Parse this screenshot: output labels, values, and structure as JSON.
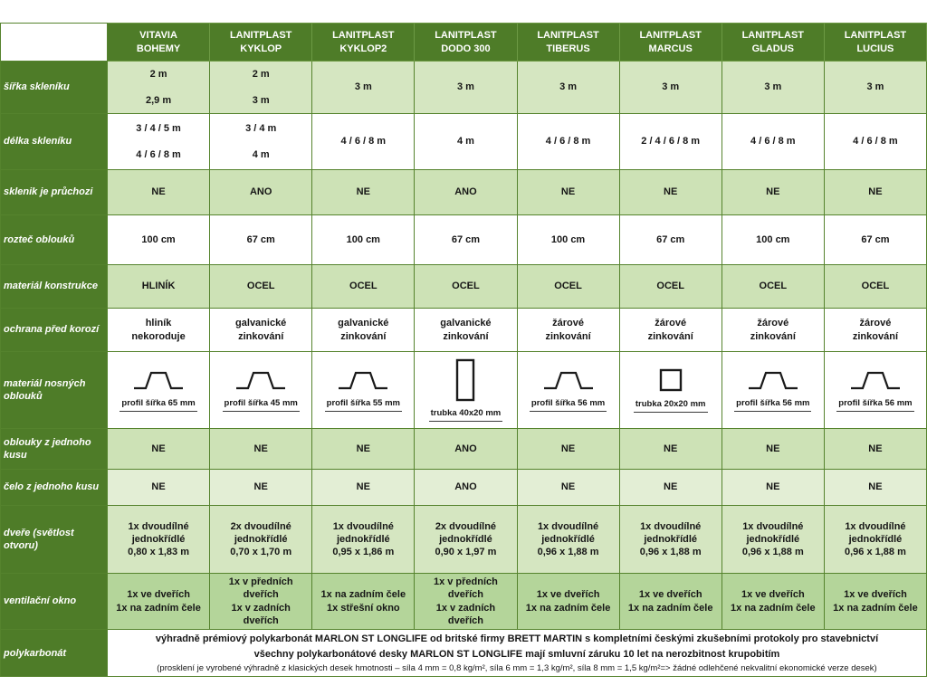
{
  "colors": {
    "header_green": "#4e7c28",
    "grid_green": "#55832d",
    "row_shades": {
      "white": "#ffffff",
      "light": "#d5e6c1",
      "mid": "#cde2b6",
      "pale": "#e3eed5",
      "dark": "#b4d59a"
    }
  },
  "table": {
    "columns": [
      {
        "brand": "VITAVIA",
        "model": "BOHEMY"
      },
      {
        "brand": "LANITPLAST",
        "model": "KYKLOP"
      },
      {
        "brand": "LANITPLAST",
        "model": "KYKLOP2"
      },
      {
        "brand": "LANITPLAST",
        "model": "DODO 300"
      },
      {
        "brand": "LANITPLAST",
        "model": "TIBERUS"
      },
      {
        "brand": "LANITPLAST",
        "model": "MARCUS"
      },
      {
        "brand": "LANITPLAST",
        "model": "GLADUS"
      },
      {
        "brand": "LANITPLAST",
        "model": "LUCIUS"
      }
    ],
    "rows": [
      {
        "label": "šířka skleníku",
        "type": "text",
        "shade": "light",
        "cells": [
          [
            "2 m",
            "2,9 m"
          ],
          [
            "2 m",
            "3 m"
          ],
          [
            "3 m"
          ],
          [
            "3 m"
          ],
          [
            "3 m"
          ],
          [
            "3 m"
          ],
          [
            "3 m"
          ],
          [
            "3 m"
          ]
        ]
      },
      {
        "label": "délka skleníku",
        "type": "text",
        "shade": "white",
        "cells": [
          [
            "3 / 4 / 5 m",
            "4 / 6 / 8 m"
          ],
          [
            "3 / 4 m",
            "4 m"
          ],
          [
            "4 / 6 / 8 m"
          ],
          [
            "4 m"
          ],
          [
            "4 / 6 / 8 m"
          ],
          [
            "2 / 4 / 6 / 8 m"
          ],
          [
            "4 / 6 / 8 m"
          ],
          [
            "4 / 6 / 8 m"
          ]
        ]
      },
      {
        "label": "sklenik je průchozi",
        "type": "text",
        "shade": "mid",
        "cells": [
          [
            "NE"
          ],
          [
            "ANO"
          ],
          [
            "NE"
          ],
          [
            "ANO"
          ],
          [
            "NE"
          ],
          [
            "NE"
          ],
          [
            "NE"
          ],
          [
            "NE"
          ]
        ]
      },
      {
        "label": "rozteč oblouků",
        "type": "text",
        "shade": "white",
        "cells": [
          [
            "100 cm"
          ],
          [
            "67 cm"
          ],
          [
            "100 cm"
          ],
          [
            "67 cm"
          ],
          [
            "100 cm"
          ],
          [
            "67 cm"
          ],
          [
            "100 cm"
          ],
          [
            "67 cm"
          ]
        ]
      },
      {
        "label": "materiál konstrukce",
        "type": "text",
        "shade": "mid",
        "cells": [
          [
            "HLINÍK"
          ],
          [
            "OCEL"
          ],
          [
            "OCEL"
          ],
          [
            "OCEL"
          ],
          [
            "OCEL"
          ],
          [
            "OCEL"
          ],
          [
            "OCEL"
          ],
          [
            "OCEL"
          ]
        ]
      },
      {
        "label": "ochrana před korozí",
        "type": "text",
        "shade": "white",
        "cells": [
          [
            "hliník",
            "nekoroduje"
          ],
          [
            "galvanické",
            "zinkování"
          ],
          [
            "galvanické",
            "zinkování"
          ],
          [
            "galvanické",
            "zinkování"
          ],
          [
            "žárové",
            "zinkování"
          ],
          [
            "žárové",
            "zinkování"
          ],
          [
            "žárové",
            "zinkování"
          ],
          [
            "žárové",
            "zinkování"
          ]
        ]
      },
      {
        "label": "materiál nosných oblouků",
        "type": "profiles",
        "shade": "white",
        "cells": [
          {
            "shape": "hat-profile",
            "caption": "profil šířka 65 mm"
          },
          {
            "shape": "hat-profile",
            "caption": "profil šířka 45 mm"
          },
          {
            "shape": "hat-profile",
            "caption": "profil šířka 55 mm"
          },
          {
            "shape": "tube-40x20",
            "caption": "trubka 40x20 mm"
          },
          {
            "shape": "hat-profile",
            "caption": "profil šířka 56 mm"
          },
          {
            "shape": "tube-20x20",
            "caption": "trubka 20x20 mm"
          },
          {
            "shape": "hat-profile",
            "caption": "profil šířka 56 mm"
          },
          {
            "shape": "hat-profile",
            "caption": "profil šířka 56 mm"
          }
        ]
      },
      {
        "label": "oblouky z jednoho kusu",
        "type": "text",
        "shade": "mid",
        "cells": [
          [
            "NE"
          ],
          [
            "NE"
          ],
          [
            "NE"
          ],
          [
            "ANO"
          ],
          [
            "NE"
          ],
          [
            "NE"
          ],
          [
            "NE"
          ],
          [
            "NE"
          ]
        ]
      },
      {
        "label": "čelo z jednoho kusu",
        "type": "text",
        "shade": "pale",
        "cells": [
          [
            "NE"
          ],
          [
            "NE"
          ],
          [
            "NE"
          ],
          [
            "ANO"
          ],
          [
            "NE"
          ],
          [
            "NE"
          ],
          [
            "NE"
          ],
          [
            "NE"
          ]
        ]
      },
      {
        "label": "dveře (světlost otvoru)",
        "type": "text",
        "shade": "light",
        "cells": [
          [
            "1x dvoudílné",
            "jednokřídlé",
            "0,80 x 1,83 m"
          ],
          [
            "2x dvoudílné",
            "jednokřídlé",
            "0,70 x 1,70 m"
          ],
          [
            "1x dvoudílné",
            "jednokřídlé",
            "0,95 x 1,86 m"
          ],
          [
            "2x dvoudílné",
            "jednokřídlé",
            "0,90 x 1,97 m"
          ],
          [
            "1x dvoudílné",
            "jednokřídlé",
            "0,96 x 1,88 m"
          ],
          [
            "1x dvoudílné",
            "jednokřídlé",
            "0,96 x 1,88 m"
          ],
          [
            "1x dvoudílné",
            "jednokřídlé",
            "0,96 x 1,88 m"
          ],
          [
            "1x dvoudílné",
            "jednokřídlé",
            "0,96 x 1,88 m"
          ]
        ]
      },
      {
        "label": "ventilační okno",
        "type": "text",
        "shade": "dark",
        "cells": [
          [
            "1x ve dveřích",
            "1x na zadním čele"
          ],
          [
            "1x v předních dveřích",
            "1x v zadních dveřích"
          ],
          [
            "1x na zadním čele",
            "1x střešní okno"
          ],
          [
            "1x v předních dveřích",
            "1x v zadních dveřích"
          ],
          [
            "1x ve dveřích",
            "1x na zadním čele"
          ],
          [
            "1x ve dveřích",
            "1x na zadním čele"
          ],
          [
            "1x ve dveřích",
            "1x na zadním čele"
          ],
          [
            "1x ve dveřích",
            "1x na zadním čele"
          ]
        ]
      },
      {
        "label": "polykarbonát",
        "type": "span",
        "shade": "white",
        "lines": [
          "výhradně prémiový polykarbonát MARLON ST LONGLIFE od britské firmy BRETT MARTIN s kompletními českými zkušebními protokoly pro stavebnictví",
          "všechny polykarbonátové desky MARLON ST LONGLIFE mají smluvní záruku 10 let na nerozbitnost krupobitím",
          "(prosklení je vyrobené výhradně z klasických desek hmotnosti – síla 4 mm = 0,8 kg/m², síla 6 mm = 1,3 kg/m², síla 8 mm = 1,5 kg/m²=> žádné odlehčené nekvalitní ekonomické verze desek)"
        ]
      }
    ]
  }
}
